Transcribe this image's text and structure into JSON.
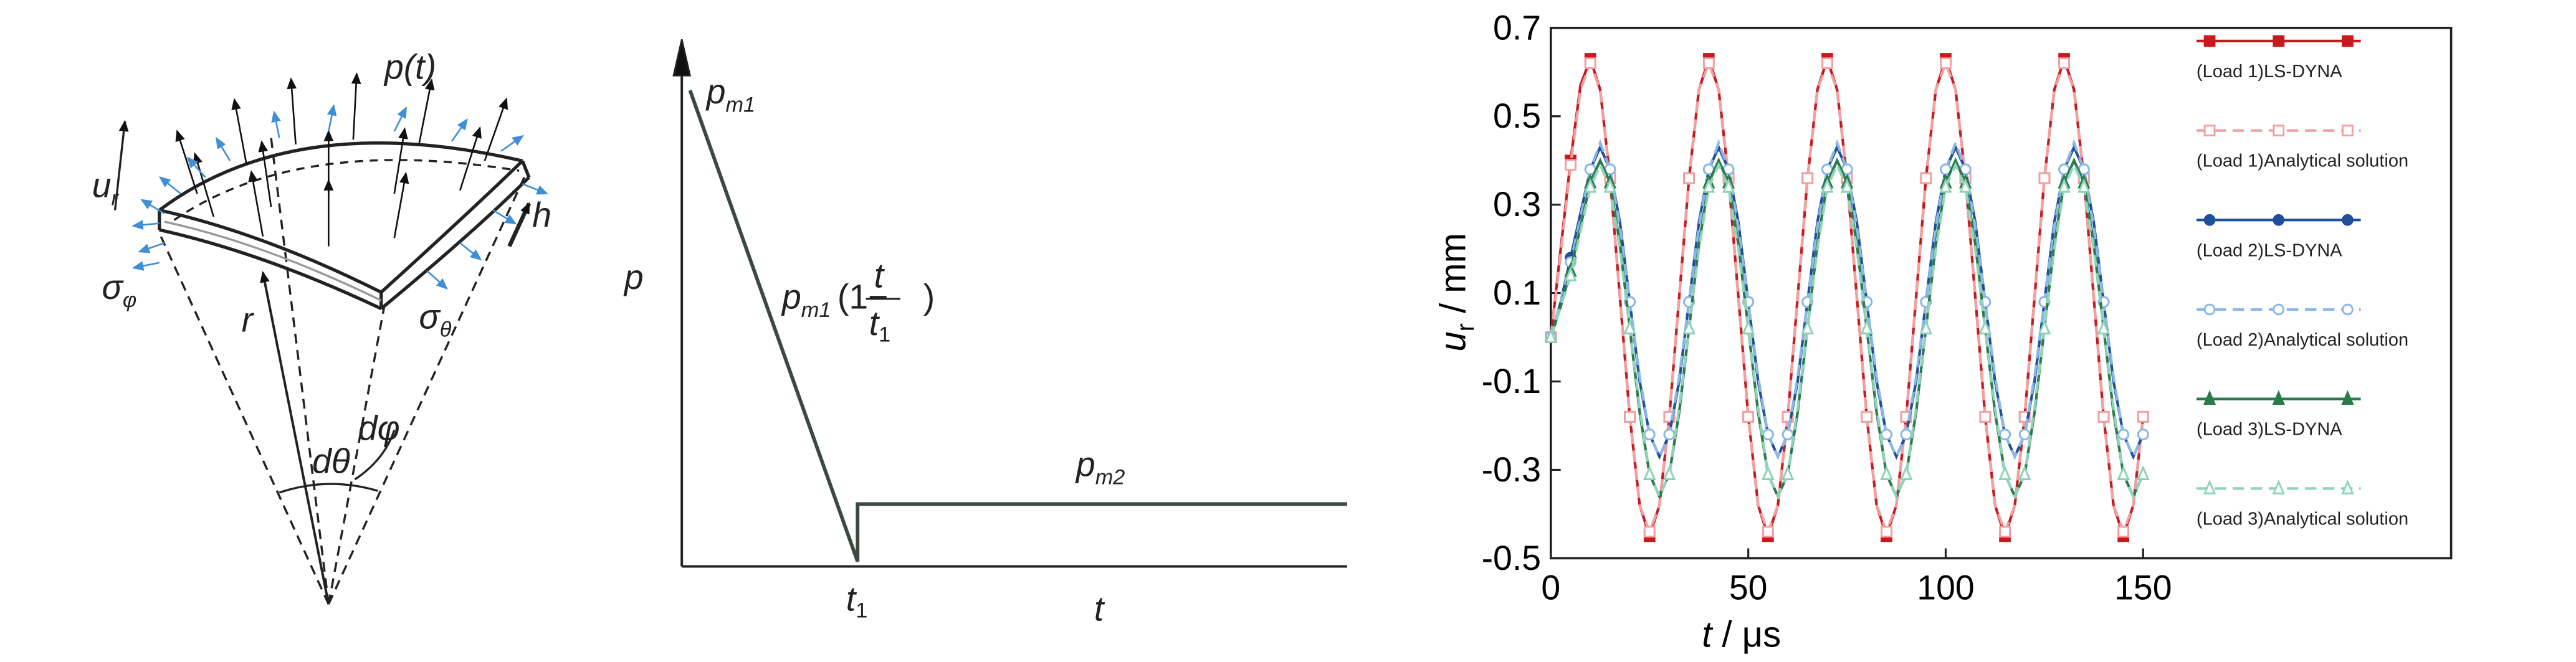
{
  "shell_diagram": {
    "pressure": "p(t)",
    "displacement": [
      "u",
      "r"
    ],
    "thickness": "h",
    "stress_phi": [
      "σ",
      "φ"
    ],
    "stress_theta": [
      "σ",
      "θ"
    ],
    "radius": "r",
    "angle_theta": "dθ",
    "angle_phi": "dφ"
  },
  "load_diagram": {
    "y_label": "p",
    "x_label": "t",
    "peak": [
      "p",
      "m1"
    ],
    "formula": [
      "p",
      "m1",
      "(1−",
      "t",
      "t",
      "1",
      ")"
    ],
    "plateau": [
      "p",
      "m2"
    ],
    "time_mark": [
      "t",
      "1"
    ]
  },
  "chart_data": {
    "type": "line",
    "xlabel": [
      "t",
      " / μs"
    ],
    "ylabel": [
      "u",
      "r",
      " / mm"
    ],
    "xlim": [
      0,
      228
    ],
    "ylim": [
      -0.5,
      0.7
    ],
    "xticks": [
      0,
      50,
      100,
      150
    ],
    "yticks": [
      -0.5,
      -0.3,
      -0.1,
      0.1,
      0.3,
      0.5,
      0.7
    ],
    "legend": "upper right",
    "x": [
      0,
      2.5,
      5,
      7.5,
      10,
      12.5,
      15,
      17.5,
      20,
      22.5,
      25,
      27.5,
      30,
      32.5,
      35,
      37.5,
      40,
      42.5,
      45,
      47.5,
      50,
      52.5,
      55,
      57.5,
      60,
      62.5,
      65,
      67.5,
      70,
      72.5,
      75,
      77.5,
      80,
      82.5,
      85,
      87.5,
      90,
      92.5,
      95,
      97.5,
      100,
      102.5,
      105,
      107.5,
      110,
      112.5,
      115,
      117.5,
      120,
      122.5,
      125,
      127.5,
      130,
      132.5,
      135,
      137.5,
      140,
      142.5,
      145,
      147.5,
      150
    ],
    "series": [
      {
        "name": "(Load 1)LS-DYNA",
        "color": "#c8191e",
        "dashed": false,
        "marker": "square",
        "filled": true,
        "values": [
          0,
          0.2,
          0.4,
          0.57,
          0.63,
          0.56,
          0.36,
          0.09,
          -0.18,
          -0.38,
          -0.45,
          -0.38,
          -0.18,
          0.09,
          0.36,
          0.56,
          0.63,
          0.56,
          0.36,
          0.09,
          -0.18,
          -0.38,
          -0.45,
          -0.38,
          -0.18,
          0.09,
          0.36,
          0.56,
          0.63,
          0.56,
          0.36,
          0.09,
          -0.18,
          -0.38,
          -0.45,
          -0.38,
          -0.18,
          0.09,
          0.36,
          0.56,
          0.63,
          0.56,
          0.36,
          0.09,
          -0.18,
          -0.38,
          -0.45,
          -0.38,
          -0.18,
          0.09,
          0.36,
          0.56,
          0.63,
          0.56,
          0.36,
          0.09,
          -0.18,
          -0.38,
          -0.45,
          -0.38,
          -0.18
        ]
      },
      {
        "name": "(Load 1)Analytical solution",
        "color": "#f2a0a0",
        "dashed": true,
        "marker": "square",
        "filled": false,
        "values": [
          0,
          0.19,
          0.39,
          0.56,
          0.62,
          0.56,
          0.36,
          0.09,
          -0.18,
          -0.38,
          -0.44,
          -0.38,
          -0.18,
          0.09,
          0.36,
          0.56,
          0.62,
          0.56,
          0.36,
          0.09,
          -0.18,
          -0.38,
          -0.44,
          -0.38,
          -0.18,
          0.09,
          0.36,
          0.56,
          0.62,
          0.56,
          0.36,
          0.09,
          -0.18,
          -0.38,
          -0.44,
          -0.38,
          -0.18,
          0.09,
          0.36,
          0.56,
          0.62,
          0.56,
          0.36,
          0.09,
          -0.18,
          -0.38,
          -0.44,
          -0.38,
          -0.18,
          0.09,
          0.36,
          0.56,
          0.62,
          0.56,
          0.36,
          0.09,
          -0.18,
          -0.38,
          -0.44,
          -0.38,
          -0.18
        ]
      },
      {
        "name": "(Load 2)LS-DYNA",
        "color": "#1f4e9c",
        "dashed": false,
        "marker": "circle",
        "filled": true,
        "values": [
          0,
          0.08,
          0.18,
          0.28,
          0.38,
          0.43,
          0.38,
          0.26,
          0.08,
          -0.1,
          -0.22,
          -0.27,
          -0.22,
          -0.1,
          0.08,
          0.26,
          0.38,
          0.43,
          0.38,
          0.26,
          0.08,
          -0.1,
          -0.22,
          -0.27,
          -0.22,
          -0.1,
          0.08,
          0.26,
          0.38,
          0.43,
          0.38,
          0.26,
          0.08,
          -0.1,
          -0.22,
          -0.27,
          -0.22,
          -0.1,
          0.08,
          0.26,
          0.38,
          0.43,
          0.38,
          0.26,
          0.08,
          -0.1,
          -0.22,
          -0.27,
          -0.22,
          -0.1,
          0.08,
          0.26,
          0.38,
          0.43,
          0.38,
          0.26,
          0.08,
          -0.1,
          -0.22,
          -0.27,
          -0.22
        ]
      },
      {
        "name": "(Load 2)Analytical solution",
        "color": "#8ab8e8",
        "dashed": true,
        "marker": "circle",
        "filled": false,
        "values": [
          0,
          0.08,
          0.17,
          0.27,
          0.38,
          0.44,
          0.38,
          0.25,
          0.08,
          -0.09,
          -0.22,
          -0.27,
          -0.22,
          -0.09,
          0.08,
          0.25,
          0.38,
          0.44,
          0.38,
          0.25,
          0.08,
          -0.09,
          -0.22,
          -0.27,
          -0.22,
          -0.09,
          0.08,
          0.25,
          0.38,
          0.44,
          0.38,
          0.25,
          0.08,
          -0.09,
          -0.22,
          -0.27,
          -0.22,
          -0.09,
          0.08,
          0.25,
          0.38,
          0.44,
          0.38,
          0.25,
          0.08,
          -0.09,
          -0.22,
          -0.27,
          -0.22,
          -0.09,
          0.08,
          0.25,
          0.38,
          0.44,
          0.38,
          0.25,
          0.08,
          -0.09,
          -0.22,
          -0.27,
          -0.22
        ]
      },
      {
        "name": "(Load 3)LS-DYNA",
        "color": "#2a7a4a",
        "dashed": false,
        "marker": "triangle",
        "filled": true,
        "values": [
          0,
          0.07,
          0.15,
          0.25,
          0.35,
          0.4,
          0.35,
          0.21,
          0.02,
          -0.17,
          -0.31,
          -0.36,
          -0.31,
          -0.17,
          0.02,
          0.21,
          0.35,
          0.4,
          0.35,
          0.21,
          0.02,
          -0.17,
          -0.31,
          -0.36,
          -0.31,
          -0.17,
          0.02,
          0.21,
          0.35,
          0.4,
          0.35,
          0.21,
          0.02,
          -0.17,
          -0.31,
          -0.36,
          -0.31,
          -0.17,
          0.02,
          0.21,
          0.35,
          0.4,
          0.35,
          0.21,
          0.02,
          -0.17,
          -0.31,
          -0.36,
          -0.31,
          -0.17,
          0.02,
          0.21,
          0.35,
          0.4,
          0.35,
          0.21,
          0.02,
          -0.17,
          -0.31,
          -0.36,
          -0.31
        ]
      },
      {
        "name": "(Load 3)Analytical solution",
        "color": "#8fd4b8",
        "dashed": true,
        "marker": "triangle",
        "filled": false,
        "values": [
          0,
          0.07,
          0.14,
          0.24,
          0.34,
          0.39,
          0.34,
          0.2,
          0.02,
          -0.16,
          -0.31,
          -0.36,
          -0.31,
          -0.16,
          0.02,
          0.2,
          0.34,
          0.39,
          0.34,
          0.2,
          0.02,
          -0.16,
          -0.31,
          -0.36,
          -0.31,
          -0.16,
          0.02,
          0.2,
          0.34,
          0.39,
          0.34,
          0.2,
          0.02,
          -0.16,
          -0.31,
          -0.36,
          -0.31,
          -0.16,
          0.02,
          0.2,
          0.34,
          0.39,
          0.34,
          0.2,
          0.02,
          -0.16,
          -0.31,
          -0.36,
          -0.31,
          -0.16,
          0.02,
          0.2,
          0.34,
          0.39,
          0.34,
          0.2,
          0.02,
          -0.16,
          -0.31,
          -0.36,
          -0.31
        ]
      }
    ]
  }
}
